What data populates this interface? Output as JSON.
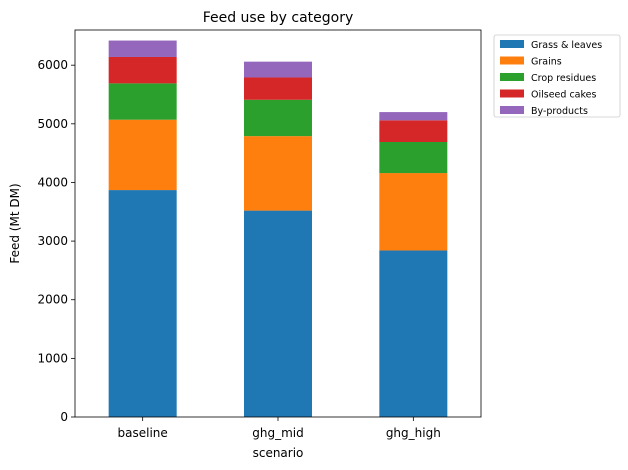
{
  "chart_data": {
    "type": "bar",
    "stacked": true,
    "title": "Feed use by category",
    "xlabel": "scenario",
    "ylabel": "Feed (Mt DM)",
    "categories": [
      "baseline",
      "ghg_mid",
      "ghg_high"
    ],
    "ylim": [
      0,
      6600
    ],
    "yticks": [
      0,
      1000,
      2000,
      3000,
      4000,
      5000,
      6000
    ],
    "grid": false,
    "legend_position": "outside-top-right",
    "series": [
      {
        "name": "Grass & leaves",
        "color": "#1f77b4",
        "values": [
          3870,
          3520,
          2840
        ]
      },
      {
        "name": "Grains",
        "color": "#ff7f0e",
        "values": [
          1200,
          1270,
          1320
        ]
      },
      {
        "name": "Crop residues",
        "color": "#2ca02c",
        "values": [
          620,
          620,
          530
        ]
      },
      {
        "name": "Oilseed cakes",
        "color": "#d62728",
        "values": [
          450,
          380,
          370
        ]
      },
      {
        "name": "By-products",
        "color": "#9467bd",
        "values": [
          280,
          270,
          140
        ]
      }
    ]
  }
}
